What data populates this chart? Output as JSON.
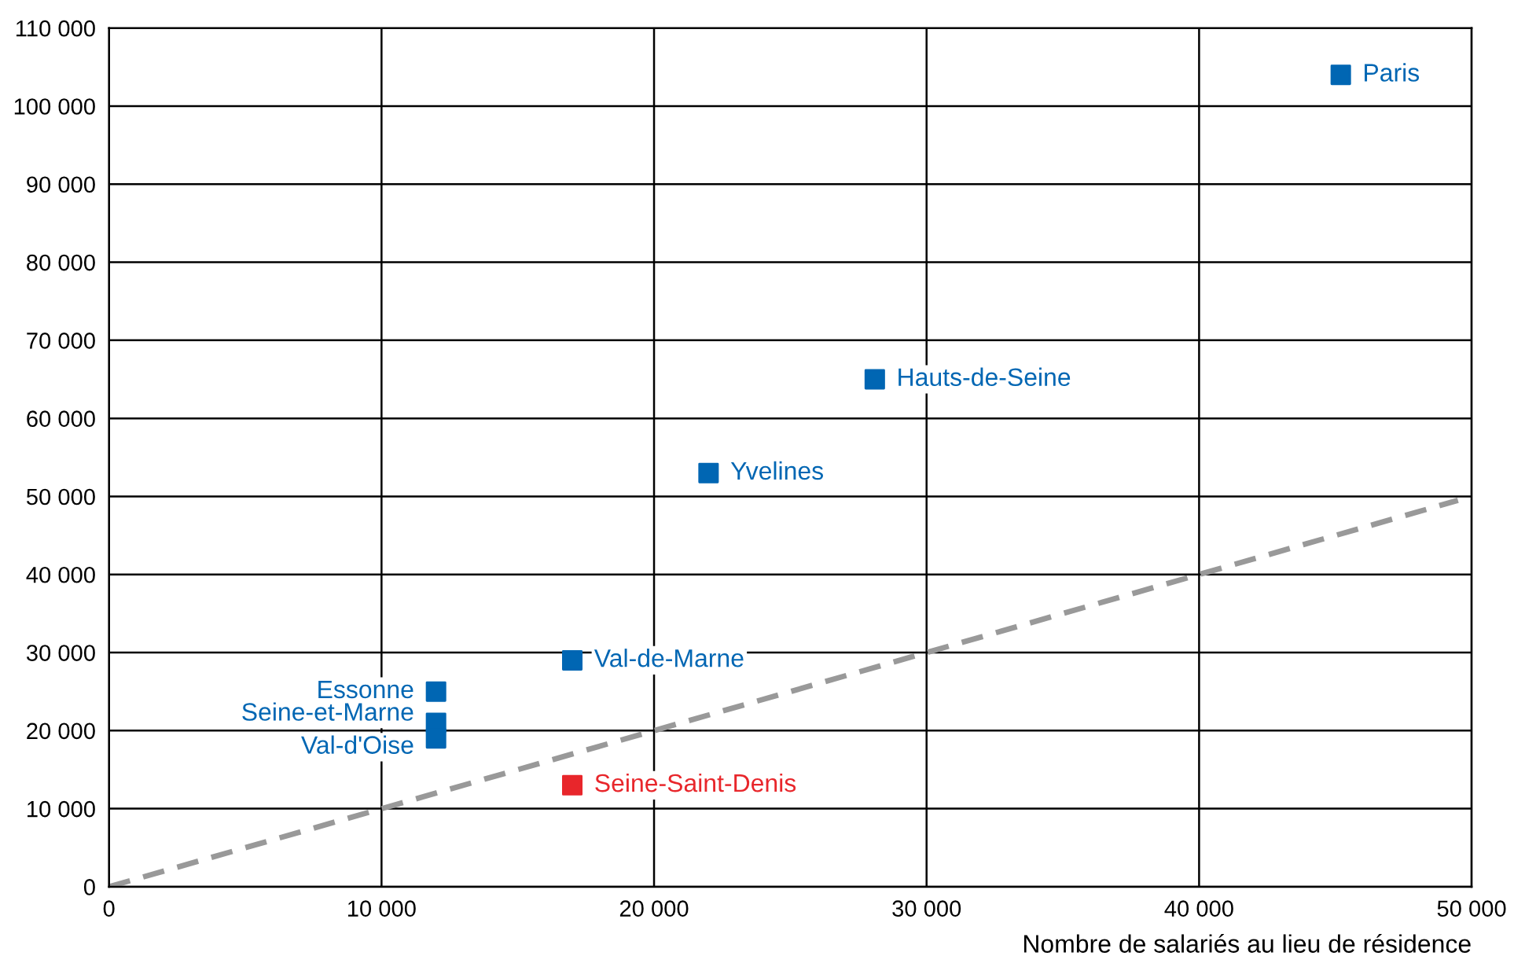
{
  "chart_data": {
    "type": "scatter",
    "xlabel": "Nombre de salariés au lieu de résidence",
    "marker": "square",
    "grid": true,
    "legend": false,
    "xlim": [
      0,
      50000
    ],
    "ylim": [
      0,
      110000
    ],
    "xticks": [
      0,
      {
        "value": 10000,
        "label": "10 000"
      },
      {
        "value": 20000,
        "label": "20 000"
      },
      {
        "value": 30000,
        "label": "30 000"
      },
      {
        "value": 40000,
        "label": "40 000"
      },
      {
        "value": 50000,
        "label": "50 000"
      }
    ],
    "yticks": [
      0,
      {
        "value": 10000,
        "label": "10 000"
      },
      {
        "value": 20000,
        "label": "20 000"
      },
      {
        "value": 30000,
        "label": "30 000"
      },
      {
        "value": 40000,
        "label": "40 000"
      },
      {
        "value": 50000,
        "label": "50 000"
      },
      {
        "value": 60000,
        "label": "60 000"
      },
      {
        "value": 70000,
        "label": "70 000"
      },
      {
        "value": 80000,
        "label": "80 000"
      },
      {
        "value": 90000,
        "label": "90 000"
      },
      {
        "value": 100000,
        "label": "100 000"
      },
      {
        "value": 110000,
        "label": "110 000"
      }
    ],
    "series": [
      {
        "type": "line",
        "line_style": "dashed",
        "marker": "none",
        "color": "#999999",
        "x": [
          0,
          49500
        ],
        "values": [
          0,
          49500
        ]
      },
      {
        "name": "Paris",
        "color": "#0066b3",
        "x": [
          45200
        ],
        "values": [
          104000
        ]
      },
      {
        "name": "Hauts-de-Seine",
        "color": "#0066b3",
        "x": [
          28100
        ],
        "values": [
          65000
        ]
      },
      {
        "name": "Yvelines",
        "color": "#0066b3",
        "x": [
          22000
        ],
        "values": [
          53000
        ]
      },
      {
        "name": "Val-de-Marne",
        "color": "#0066b3",
        "x": [
          17000
        ],
        "values": [
          29000
        ]
      },
      {
        "name": "Essonne",
        "color": "#0066b3",
        "x": [
          12000
        ],
        "values": [
          25000
        ]
      },
      {
        "name": "Seine-et-Marne",
        "color": "#0066b3",
        "x": [
          12000
        ],
        "values": [
          21000
        ]
      },
      {
        "name": "Val-d'Oise",
        "color": "#0066b3",
        "x": [
          12000
        ],
        "values": [
          19000
        ]
      },
      {
        "name": "Seine-Saint-Denis",
        "color": "#e8262b",
        "x": [
          17000
        ],
        "values": [
          13000
        ]
      }
    ]
  }
}
